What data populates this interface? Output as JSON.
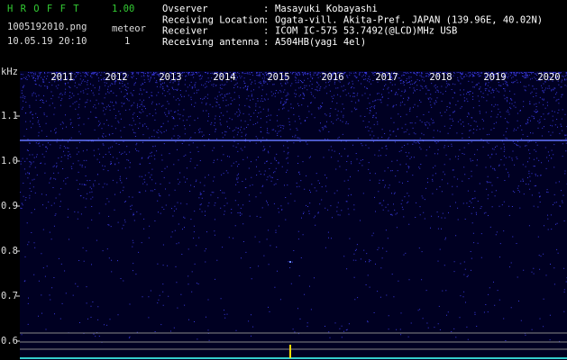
{
  "header": {
    "app_name": "H R O F F T",
    "version": "1.00",
    "file": "1005192010.png",
    "mode": "meteor",
    "timestamp": "10.05.19 20:10",
    "count": "1"
  },
  "station": {
    "rows": [
      {
        "label": "Ovserver",
        "value": "Masayuki Kobayashi"
      },
      {
        "label": "Receiving Location",
        "value": "Ogata-vill. Akita-Pref. JAPAN (139.96E, 40.02N)"
      },
      {
        "label": "Receiver",
        "value": "ICOM IC-575 53.7492(@LCD)MHz USB"
      },
      {
        "label": "Receiving antenna",
        "value": "A504HB(yagi 4el)"
      }
    ],
    "separator": ":"
  },
  "spectrogram": {
    "y_unit": "kHz",
    "yticks": [
      "1.1",
      "1.0",
      "0.9",
      "0.8",
      "0.7",
      "0.6"
    ],
    "xticks": [
      "2011",
      "2012",
      "2013",
      "2014",
      "2015",
      "2016",
      "2017",
      "2018",
      "2019",
      "2020"
    ]
  }
}
